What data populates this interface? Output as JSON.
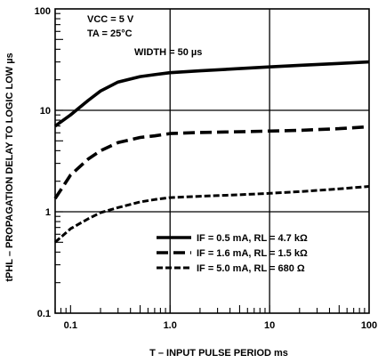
{
  "chart_data": {
    "type": "line",
    "x_scale": "log",
    "y_scale": "log",
    "xlim": [
      0.07,
      100
    ],
    "ylim": [
      0.1,
      100
    ],
    "grid": true,
    "xlabel": "T – INPUT PULSE PERIOD ms",
    "ylabel": "tPHL – PROPAGATION DELAY TO LOGIC LOW µs",
    "x_tick_labels": [
      "0.1",
      "1.0",
      "10",
      "100"
    ],
    "y_tick_labels": [
      "0.1",
      "1",
      "10",
      "100"
    ],
    "annotations": [
      "VCC = 5 V",
      "TA = 25°C",
      "WIDTH = 50 µs"
    ],
    "legend_position": "lower-right",
    "series": [
      {
        "name": "IF = 0.5 mA, RL = 4.7 kΩ",
        "line_style": "solid",
        "x": [
          0.07,
          0.1,
          0.15,
          0.2,
          0.3,
          0.5,
          0.7,
          1,
          2,
          5,
          10,
          20,
          50,
          100
        ],
        "y": [
          7.0,
          9.0,
          12.5,
          15.5,
          19.0,
          21.5,
          22.5,
          23.5,
          24.5,
          25.8,
          26.8,
          27.8,
          29.0,
          30.0
        ]
      },
      {
        "name": "IF = 1.6 mA, RL = 1.5 kΩ",
        "line_style": "dashed",
        "x": [
          0.07,
          0.1,
          0.15,
          0.2,
          0.3,
          0.5,
          0.7,
          1,
          2,
          5,
          10,
          20,
          50,
          100
        ],
        "y": [
          1.35,
          2.3,
          3.3,
          4.0,
          4.8,
          5.4,
          5.6,
          5.9,
          6.05,
          6.15,
          6.25,
          6.35,
          6.6,
          6.9
        ]
      },
      {
        "name": "IF = 5.0 mA, RL = 680 Ω",
        "line_style": "dotted-dash",
        "x": [
          0.07,
          0.1,
          0.15,
          0.2,
          0.3,
          0.5,
          0.7,
          1,
          2,
          5,
          10,
          20,
          50,
          100
        ],
        "y": [
          0.5,
          0.68,
          0.85,
          0.98,
          1.1,
          1.25,
          1.32,
          1.38,
          1.42,
          1.47,
          1.52,
          1.58,
          1.68,
          1.78
        ]
      }
    ]
  }
}
